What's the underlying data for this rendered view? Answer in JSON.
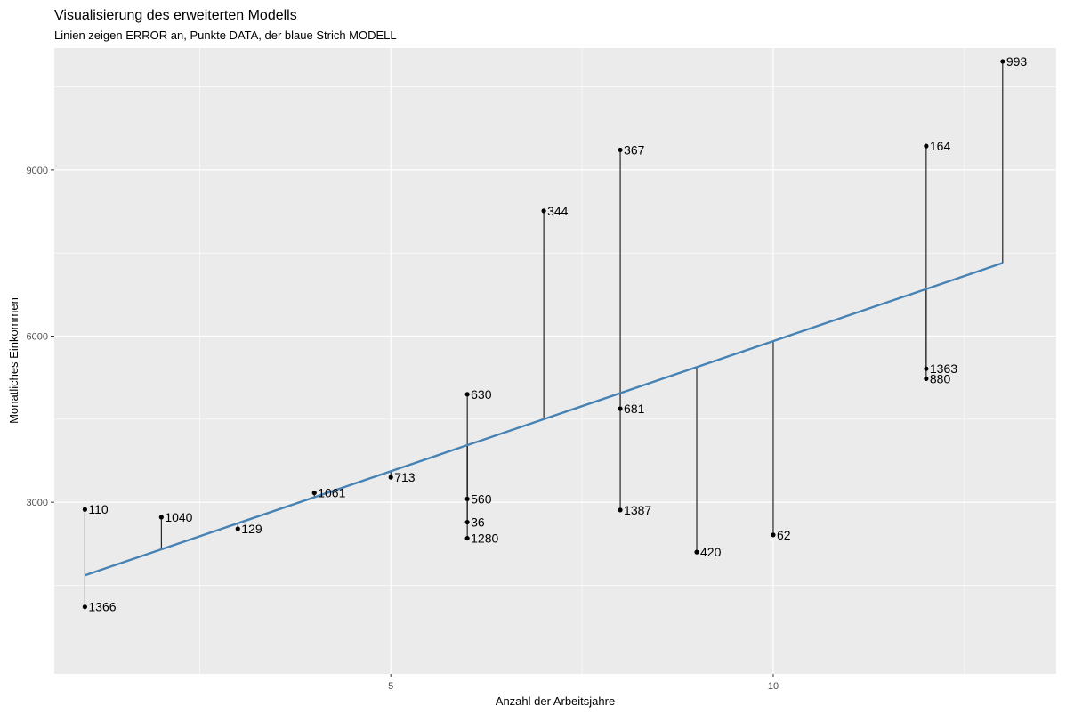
{
  "chart_data": {
    "type": "scatter",
    "title": "Visualisierung des erweiterten Modells",
    "subtitle": "Linien zeigen ERROR an, Punkte DATA, der blaue Strich MODELL",
    "xlabel": "Anzahl der Arbeitsjahre",
    "ylabel": "Monatliches Einkommen",
    "xlim": [
      0.6,
      13.7
    ],
    "ylim": [
      -100,
      11200
    ],
    "x_ticks": [
      5,
      10
    ],
    "x_tick_labels": [
      "5",
      "10"
    ],
    "y_ticks": [
      3000,
      6000,
      9000
    ],
    "y_tick_labels": [
      "3000",
      "6000",
      "9000"
    ],
    "grid": true,
    "colors": {
      "panel": "#ebebeb",
      "grid": "#ffffff",
      "model_line": "#4682b4",
      "points": "#000000",
      "error_lines": "#000000"
    },
    "model_line": {
      "x": [
        1.0,
        13.0
      ],
      "y": [
        1680,
        7320
      ]
    },
    "points": [
      {
        "label": "110",
        "x": 1,
        "y": 2870
      },
      {
        "label": "1366",
        "x": 1,
        "y": 1110
      },
      {
        "label": "1040",
        "x": 2,
        "y": 2730
      },
      {
        "label": "129",
        "x": 3,
        "y": 2520
      },
      {
        "label": "1061",
        "x": 4,
        "y": 3170
      },
      {
        "label": "713",
        "x": 5,
        "y": 3450
      },
      {
        "label": "630",
        "x": 6,
        "y": 4950
      },
      {
        "label": "560",
        "x": 6,
        "y": 3060
      },
      {
        "label": "36",
        "x": 6,
        "y": 2640
      },
      {
        "label": "1280",
        "x": 6,
        "y": 2350
      },
      {
        "label": "344",
        "x": 7,
        "y": 8260
      },
      {
        "label": "367",
        "x": 8,
        "y": 9360
      },
      {
        "label": "681",
        "x": 8,
        "y": 4690
      },
      {
        "label": "1387",
        "x": 8,
        "y": 2860
      },
      {
        "label": "420",
        "x": 9,
        "y": 2100
      },
      {
        "label": "62",
        "x": 10,
        "y": 2410
      },
      {
        "label": "164",
        "x": 12,
        "y": 9430
      },
      {
        "label": "1363",
        "x": 12,
        "y": 5410
      },
      {
        "label": "880",
        "x": 12,
        "y": 5230
      },
      {
        "label": "993",
        "x": 13,
        "y": 10960
      }
    ]
  }
}
